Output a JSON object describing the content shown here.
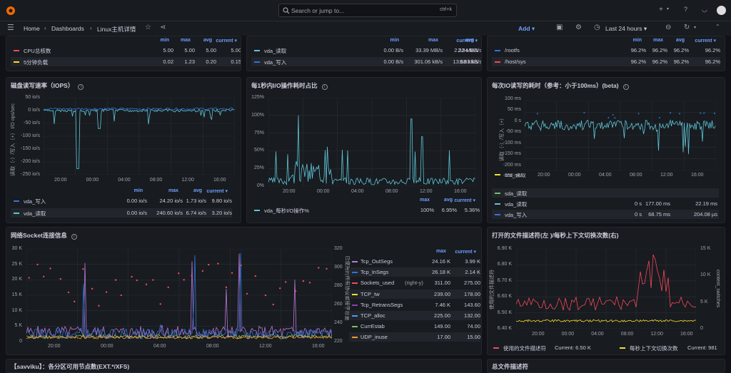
{
  "search": {
    "placeholder": "Search or jump to...",
    "shortcut": "ctrl+k"
  },
  "breadcrumb": {
    "home": "Home",
    "dashboards": "Dashboards",
    "current": "Linux主机详情"
  },
  "toolbar": {
    "add": "Add",
    "time_range": "Last 24 hours"
  },
  "colors": {
    "bg": "#111217",
    "panel": "#181b1f",
    "accent": "#6e9fff",
    "green": "#73bf69",
    "yellow": "#fade2a",
    "red": "#f2495c",
    "cyan": "#5ec4d8",
    "blue": "#3274d9",
    "purple": "#b877d9",
    "orange": "#ff9830"
  },
  "top_left": {
    "headers": [
      "min",
      "max",
      "avg",
      "current"
    ],
    "rows": [
      {
        "name": "CPU总核数",
        "color": "#f2495c",
        "values": [
          "5.00",
          "5.00",
          "5.00",
          "5.00"
        ]
      },
      {
        "name": "5分钟负载",
        "color": "#fade2a",
        "values": [
          "0.02",
          "1.23",
          "0.20",
          "0.15"
        ]
      }
    ]
  },
  "top_mid": {
    "headers": [
      "min",
      "max",
      "avg",
      "current"
    ],
    "rows": [
      {
        "name": "vda_读取",
        "color": "#5ec4d8",
        "values": [
          "0.00 B/s",
          "33.39 MB/s",
          "2.32 MB/s",
          "2.94 MB/s"
        ]
      },
      {
        "name": "vda_写入",
        "color": "#3274d9",
        "values": [
          "0.00 B/s",
          "301.06 kB/s",
          "13.68 kB/s",
          "9.83 kB/s"
        ]
      }
    ]
  },
  "top_right": {
    "headers": [
      "min",
      "max",
      "avg",
      "current"
    ],
    "rows": [
      {
        "name": "/rootfs",
        "color": "#3274d9",
        "values": [
          "96.2%",
          "96.2%",
          "96.2%",
          "96.2%"
        ]
      },
      {
        "name": "/host/sys",
        "color": "#f2495c",
        "values": [
          "96.2%",
          "96.2%",
          "96.2%",
          "96.2%"
        ]
      }
    ]
  },
  "panel_iops": {
    "title": "磁盘读写速率（IOPS）",
    "ylabel": "读取（-）/写入（+） I/O ops/sec",
    "yticks": [
      "50 io/s",
      "0 io/s",
      "-50 io/s",
      "-100 io/s",
      "-150 io/s",
      "-200 io/s",
      "-250 io/s"
    ],
    "xticks": [
      "20:00",
      "00:00",
      "04:00",
      "08:00",
      "12:00",
      "16:00"
    ],
    "legend_headers": [
      "min",
      "max",
      "avg",
      "current"
    ],
    "legend": [
      {
        "name": "vda_写入",
        "color": "#3274d9",
        "values": [
          "0.00 io/s",
          "24.20 io/s",
          "1.73 io/s",
          "9.80 io/s"
        ]
      },
      {
        "name": "vda_读取",
        "color": "#5ec4d8",
        "values": [
          "0.00 io/s",
          "240.60 io/s",
          "6.74 io/s",
          "3.20 io/s"
        ]
      }
    ]
  },
  "panel_io_util": {
    "title": "每1秒内I/O操作耗时占比",
    "yticks": [
      "125%",
      "100%",
      "75%",
      "50%",
      "25%",
      "0%"
    ],
    "xticks": [
      "20:00",
      "00:00",
      "04:00",
      "08:00",
      "12:00",
      "16:00"
    ],
    "legend_headers": [
      "max",
      "avg",
      "current"
    ],
    "legend": [
      {
        "name": "vda_每秒I/O操作%",
        "color": "#5ec4d8",
        "values": [
          "100%",
          "6.95%",
          "5.36%"
        ]
      }
    ]
  },
  "panel_io_latency": {
    "title": "每次IO读写的耗时（参考：小于100ms）(beta)",
    "ylabel": "读取（-）/写入（+）",
    "yticks": [
      "100 ms",
      "50 ms",
      "0 s",
      "-50 ms",
      "-100 ms",
      "-150 ms",
      "-200 ms",
      "-250 ms"
    ],
    "xticks": [
      "20:00",
      "00:00",
      "04:00",
      "08:00",
      "12:00",
      "16:00"
    ],
    "legend": [
      {
        "name": "sro_读取",
        "color": "#fade2a",
        "values": []
      },
      {
        "name": "sda_读取",
        "color": "#73bf69",
        "values": []
      },
      {
        "name": "vda_读取",
        "color": "#5ec4d8",
        "values": [
          "0 s",
          "177.00 ms",
          "22.19 ms"
        ]
      },
      {
        "name": "vda_写入",
        "color": "#3274d9",
        "values": [
          "0 s",
          "68.75 ms",
          "204.08 µs"
        ]
      }
    ]
  },
  "panel_socket": {
    "title": "网络Socket连接信息",
    "ylabel_right": "已使用的所有协议套接字总量",
    "yticks_left": [
      "30 K",
      "25 K",
      "20 K",
      "15 K",
      "10 K",
      "5 K",
      "0"
    ],
    "yticks_right": [
      "320",
      "300",
      "280",
      "260",
      "240",
      "220"
    ],
    "xticks": [
      "20:00",
      "00:00",
      "04:00",
      "08:00",
      "12:00",
      "16:00"
    ],
    "legend_headers": [
      "max",
      "current"
    ],
    "legend": [
      {
        "name": "Tcp_OutSegs",
        "color": "#b877d9",
        "values": [
          "24.16 K",
          "3.99 K"
        ]
      },
      {
        "name": "Tcp_InSegs",
        "color": "#3274d9",
        "values": [
          "26.18 K",
          "2.14 K"
        ]
      },
      {
        "name": "Sockets_used",
        "suffix": "(right-y)",
        "color": "#f2495c",
        "values": [
          "311.00",
          "275.00"
        ]
      },
      {
        "name": "TCP_tw",
        "color": "#fade2a",
        "values": [
          "239.00",
          "178.00"
        ]
      },
      {
        "name": "Tcp_RetransSegs",
        "color": "#8f3bb8",
        "values": [
          "7.46 K",
          "143.60"
        ]
      },
      {
        "name": "TCP_alloc",
        "color": "#5794f2",
        "values": [
          "225.00",
          "132.00"
        ]
      },
      {
        "name": "CurrEstab",
        "color": "#73bf69",
        "values": [
          "149.00",
          "74.00"
        ]
      },
      {
        "name": "UDP_inuse",
        "color": "#ff9830",
        "values": [
          "17.00",
          "15.00"
        ]
      }
    ]
  },
  "panel_fd": {
    "title": "打开的文件描述符(左 )/每秒上下文切换次数(右)",
    "ylabel_left": "使用的文件描述符",
    "ylabel_right": "context_switches",
    "yticks_left": [
      "6.90 K",
      "6.80 K",
      "6.70 K",
      "6.60 K",
      "6.50 K",
      "6.40 K"
    ],
    "yticks_right": [
      "15 K",
      "10 K",
      "5 K",
      "0"
    ],
    "xticks": [
      "20:00",
      "00:00",
      "04:00",
      "08:00",
      "12:00",
      "16:00"
    ],
    "legend": [
      {
        "name": "使用的文件描述符",
        "color": "#f2495c",
        "current": "Current: 6.50 K"
      },
      {
        "name": "每秒上下文切换次数",
        "color": "#fade2a",
        "current": "Current: 981"
      }
    ]
  },
  "bottom": {
    "left_title": "【savviku】：各分区可用节点数(EXT.*/XFS)",
    "right_title": "总文件描述符"
  }
}
